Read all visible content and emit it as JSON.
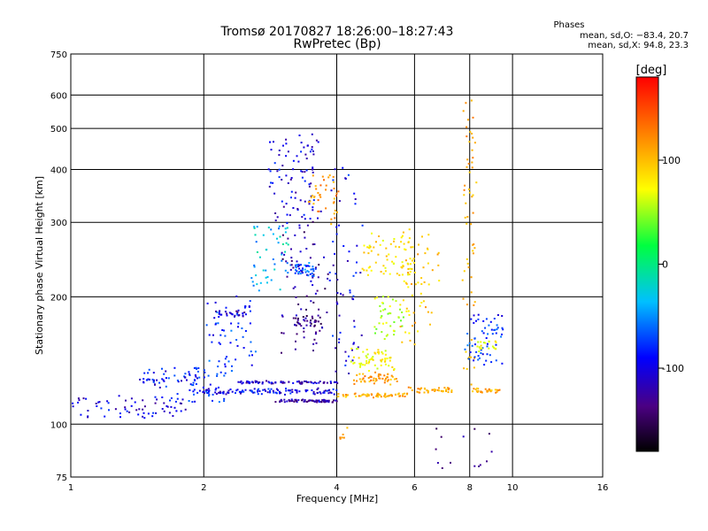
{
  "chart_data": {
    "type": "scatter",
    "title": "Tromsø 20170827 18:26:00–18:27:43",
    "subtitle": "RwPretec (Bp)",
    "xlabel": "Frequency [MHz]",
    "ylabel": "Stationary phase Virtual Height [km]",
    "x_scale": "log",
    "y_scale": "log",
    "xlim": [
      1,
      16
    ],
    "ylim": [
      75,
      750
    ],
    "x_ticks": [
      1,
      2,
      4,
      6,
      8,
      10,
      16
    ],
    "x_tick_labels": [
      "1",
      "2",
      "4",
      "6",
      "8",
      "10",
      "16"
    ],
    "y_ticks": [
      75,
      100,
      200,
      300,
      400,
      500,
      600,
      750
    ],
    "y_tick_labels": [
      "75",
      "100",
      "200",
      "300",
      "400",
      "500",
      "600",
      "750"
    ],
    "grid": true,
    "legend": {
      "title": "Phases",
      "lines": [
        "mean, sd,O: −83.4, 20.7",
        "mean, sd,X:  94.8, 23.3"
      ],
      "placement": "top-right"
    },
    "colorbar": {
      "label": "[deg]",
      "range": [
        -180,
        180
      ],
      "ticks": [
        100,
        0,
        -100
      ],
      "tick_labels": [
        "100",
        "0",
        "-100"
      ],
      "colormap": "rainbow"
    },
    "traces": [
      {
        "f": [
          1.0,
          1.85
        ],
        "h": [
          104,
          117
        ],
        "phase": -100,
        "n": 70,
        "spread": 0.022
      },
      {
        "f": [
          1.45,
          1.95
        ],
        "h": [
          122,
          135
        ],
        "phase": -90,
        "n": 50,
        "spread": 0.03
      },
      {
        "f": [
          1.85,
          2.25
        ],
        "h": [
          113,
          135
        ],
        "phase": -80,
        "n": 40,
        "spread": 0.03
      },
      {
        "f": [
          1.95,
          4.0
        ],
        "h": [
          118,
          121
        ],
        "phase": -95,
        "n": 110,
        "spread": 0.012
      },
      {
        "f": [
          2.4,
          4.0
        ],
        "h": [
          125,
          126
        ],
        "phase": -108,
        "n": 70,
        "spread": 0.01
      },
      {
        "f": [
          2.9,
          4.0
        ],
        "h": [
          113,
          114
        ],
        "phase": -120,
        "n": 70,
        "spread": 0.008
      },
      {
        "f": [
          4.0,
          5.8
        ],
        "h": [
          116,
          118
        ],
        "phase": 110,
        "n": 60,
        "spread": 0.01
      },
      {
        "f": [
          2.0,
          2.6
        ],
        "h": [
          135,
          200
        ],
        "phase": -80,
        "n": 60,
        "spread": 0.04
      },
      {
        "f": [
          2.1,
          2.5
        ],
        "h": [
          180,
          184
        ],
        "phase": -110,
        "n": 25,
        "spread": 0.02
      },
      {
        "f": [
          2.55,
          3.1
        ],
        "h": [
          210,
          300
        ],
        "phase": -40,
        "n": 50,
        "spread": 0.04
      },
      {
        "f": [
          2.8,
          3.6
        ],
        "h": [
          300,
          480
        ],
        "phase": -100,
        "n": 90,
        "spread": 0.05
      },
      {
        "f": [
          3.0,
          3.8
        ],
        "h": [
          150,
          300
        ],
        "phase": -125,
        "n": 80,
        "spread": 0.05
      },
      {
        "f": [
          3.2,
          3.6
        ],
        "h": [
          225,
          240
        ],
        "phase": -70,
        "n": 40,
        "spread": 0.02
      },
      {
        "f": [
          3.2,
          3.7
        ],
        "h": [
          170,
          180
        ],
        "phase": -130,
        "n": 30,
        "spread": 0.02
      },
      {
        "f": [
          3.5,
          4.0
        ],
        "h": [
          300,
          390
        ],
        "phase": 120,
        "n": 40,
        "spread": 0.04
      },
      {
        "f": [
          3.9,
          4.5
        ],
        "h": [
          130,
          400
        ],
        "phase": -95,
        "n": 60,
        "spread": 0.05
      },
      {
        "f": [
          4.3,
          5.4
        ],
        "h": [
          135,
          150
        ],
        "phase": 70,
        "n": 60,
        "spread": 0.03
      },
      {
        "f": [
          4.4,
          5.5
        ],
        "h": [
          125,
          132
        ],
        "phase": 115,
        "n": 50,
        "spread": 0.02
      },
      {
        "f": [
          4.6,
          5.8
        ],
        "h": [
          220,
          280
        ],
        "phase": 80,
        "n": 60,
        "spread": 0.05
      },
      {
        "f": [
          4.9,
          5.6
        ],
        "h": [
          160,
          200
        ],
        "phase": 50,
        "n": 40,
        "spread": 0.04
      },
      {
        "f": [
          5.6,
          6.1
        ],
        "h": [
          150,
          290
        ],
        "phase": 95,
        "n": 40,
        "spread": 0.04
      },
      {
        "f": [
          6.0,
          6.8
        ],
        "h": [
          170,
          280
        ],
        "phase": 100,
        "n": 30,
        "spread": 0.05
      },
      {
        "f": [
          5.8,
          7.3
        ],
        "h": [
          119,
          122
        ],
        "phase": 110,
        "n": 40,
        "spread": 0.01
      },
      {
        "f": [
          7.8,
          8.2
        ],
        "h": [
          120,
          610
        ],
        "phase": 112,
        "n": 60,
        "spread": 0.03
      },
      {
        "f": [
          7.9,
          9.4
        ],
        "h": [
          140,
          180
        ],
        "phase": -80,
        "n": 60,
        "spread": 0.05
      },
      {
        "f": [
          8.3,
          9.3
        ],
        "h": [
          150,
          158
        ],
        "phase": 70,
        "n": 20,
        "spread": 0.02
      },
      {
        "f": [
          8.1,
          9.4
        ],
        "h": [
          119,
          121
        ],
        "phase": 110,
        "n": 30,
        "spread": 0.01
      },
      {
        "f": [
          6.5,
          9.0
        ],
        "h": [
          80,
          100
        ],
        "phase": -130,
        "n": 14,
        "spread": 0.05
      },
      {
        "f": [
          4.0,
          4.2
        ],
        "h": [
          90,
          98
        ],
        "phase": 110,
        "n": 6,
        "spread": 0.03
      }
    ]
  }
}
